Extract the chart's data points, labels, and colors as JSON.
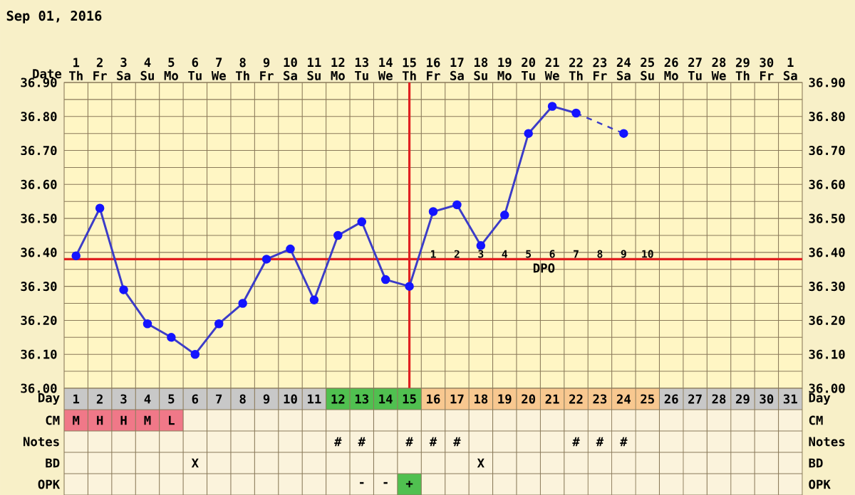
{
  "chart_data": [
    {
      "type": "line",
      "title": "Sep 01, 2016",
      "xlabel": "Date",
      "categories": [
        "1 Th",
        "2 Fr",
        "3 Sa",
        "4 Su",
        "5 Mo",
        "6 Tu",
        "7 We",
        "8 Th",
        "9 Fr",
        "10 Sa",
        "11 Su",
        "12 Mo",
        "13 Tu",
        "14 We",
        "15 Th",
        "16 Fr",
        "17 Sa",
        "18 Su",
        "19 Mo",
        "20 Tu",
        "21 We",
        "22 Th",
        "23 Fr",
        "24 Sa",
        "25 Su",
        "26 Mo",
        "27 Tu",
        "28 We",
        "29 Th",
        "30 Fr",
        "1 Sa"
      ],
      "series": [
        {
          "color": "#3c3cc8",
          "values": [
            36.39,
            36.53,
            36.29,
            36.19,
            36.15,
            36.1,
            36.19,
            36.25,
            36.38,
            36.41,
            36.26,
            36.45,
            36.49,
            36.32,
            36.3,
            36.52,
            36.54,
            36.42,
            36.51,
            36.75,
            36.83,
            36.81,
            null,
            36.75,
            null,
            null,
            null,
            null,
            null,
            null,
            null
          ]
        }
      ],
      "ylim": [
        36.0,
        36.9
      ],
      "yticks": [
        {
          "value": 36.0,
          "label": "36.00"
        },
        {
          "value": 36.1,
          "label": "36.10"
        },
        {
          "value": 36.2,
          "label": "36.20"
        },
        {
          "value": 36.3,
          "label": "36.30"
        },
        {
          "value": 36.4,
          "label": "36.40"
        },
        {
          "value": 36.5,
          "label": "36.50"
        },
        {
          "value": 36.6,
          "label": "36.60"
        },
        {
          "value": 36.7,
          "label": "36.70"
        },
        {
          "value": 36.8,
          "label": "36.80"
        },
        {
          "value": 36.9,
          "label": "36.90"
        }
      ],
      "y2lim": [
        36.0,
        36.9
      ],
      "y2ticks": [
        {
          "value": 36.0,
          "label": "36.00"
        },
        {
          "value": 36.1,
          "label": "36.10"
        },
        {
          "value": 36.2,
          "label": "36.20"
        },
        {
          "value": 36.3,
          "label": "36.30"
        },
        {
          "value": 36.4,
          "label": "36.40"
        },
        {
          "value": 36.5,
          "label": "36.50"
        },
        {
          "value": 36.6,
          "label": "36.60"
        },
        {
          "value": 36.7,
          "label": "36.70"
        },
        {
          "value": 36.8,
          "label": "36.80"
        },
        {
          "value": 36.9,
          "label": "36.90"
        }
      ],
      "ref_lines": [
        {
          "axis": "y",
          "value": 36.38,
          "label": "DPO",
          "color": "#e02020"
        },
        {
          "axis": "x",
          "value": "15 Th",
          "color": "#e02020"
        }
      ],
      "annotations": [
        "1",
        "2",
        "3",
        "4",
        "5",
        "6",
        "7",
        "8",
        "9",
        "10"
      ],
      "grid": true,
      "marker": "circle"
    },
    {
      "type": "heatmap",
      "cells": [
        [
          null,
          null,
          null,
          null,
          null,
          null,
          null,
          null,
          null,
          null,
          null,
          null,
          null,
          null,
          null,
          null,
          null,
          null,
          null,
          null,
          null,
          null,
          null,
          null,
          null,
          null,
          null,
          null,
          null,
          null,
          null
        ],
        [
          null,
          null,
          null,
          null,
          null,
          null,
          null,
          null,
          null,
          null,
          null,
          null,
          null,
          null,
          null,
          null,
          null,
          null,
          null,
          null,
          null,
          null,
          null,
          null,
          null,
          null,
          null,
          null,
          null,
          null,
          null
        ],
        [
          null,
          null,
          null,
          null,
          null,
          null,
          null,
          null,
          null,
          null,
          null,
          null,
          null,
          null,
          null,
          null,
          null,
          null,
          null,
          null,
          null,
          null,
          null,
          null,
          null,
          null,
          null,
          null,
          null,
          null,
          null
        ],
        [
          null,
          null,
          null,
          null,
          null,
          null,
          null,
          null,
          null,
          null,
          null,
          null,
          null,
          null,
          null,
          null,
          null,
          null,
          null,
          null,
          null,
          null,
          null,
          null,
          null,
          null,
          null,
          null,
          null,
          null,
          null
        ],
        [
          null,
          null,
          null,
          null,
          null,
          null,
          null,
          null,
          null,
          null,
          null,
          null,
          null,
          null,
          null,
          null,
          null,
          null,
          null,
          null,
          null,
          null,
          null,
          null,
          null,
          null,
          null,
          null,
          null,
          null,
          null
        ]
      ],
      "categories": [
        "1",
        "2",
        "3",
        "4",
        "5",
        "6",
        "7",
        "8",
        "9",
        "10",
        "11",
        "12",
        "13",
        "14",
        "15",
        "16",
        "17",
        "18",
        "19",
        "20",
        "21",
        "22",
        "23",
        "24",
        "25",
        "26",
        "27",
        "28",
        "29",
        "30",
        "31"
      ],
      "y_categories": [
        "Day",
        "CM",
        "Notes",
        "BD",
        "OPK"
      ],
      "y2_categories": [
        "Day",
        "CM",
        "Notes",
        "BD",
        "OPK"
      ],
      "cell_labels": [
        [
          null,
          null,
          null,
          null,
          null,
          null,
          null,
          null,
          null,
          null,
          null,
          null,
          null,
          null,
          null,
          null,
          null,
          null,
          null,
          null,
          null,
          null,
          null,
          null,
          null,
          null,
          null,
          null,
          null,
          null,
          null
        ],
        [
          "M",
          "H",
          "H",
          "M",
          "L",
          null,
          null,
          null,
          null,
          null,
          null,
          null,
          null,
          null,
          null,
          null,
          null,
          null,
          null,
          null,
          null,
          null,
          null,
          null,
          null,
          null,
          null,
          null,
          null,
          null,
          null
        ],
        [
          null,
          null,
          null,
          null,
          null,
          null,
          null,
          null,
          null,
          null,
          null,
          "#",
          "#",
          null,
          "#",
          "#",
          "#",
          null,
          null,
          null,
          null,
          "#",
          "#",
          "#",
          null,
          null,
          null,
          null,
          null,
          null,
          null
        ],
        [
          null,
          null,
          null,
          null,
          null,
          "X",
          null,
          null,
          null,
          null,
          null,
          null,
          null,
          null,
          null,
          null,
          null,
          "X",
          null,
          null,
          null,
          null,
          null,
          null,
          null,
          null,
          null,
          null,
          null,
          null,
          null
        ],
        [
          null,
          null,
          null,
          null,
          null,
          null,
          null,
          null,
          null,
          null,
          null,
          null,
          "-",
          "-",
          "+",
          null,
          null,
          null,
          null,
          null,
          null,
          null,
          null,
          null,
          null,
          null,
          null,
          null,
          null,
          null,
          null
        ]
      ],
      "colors": [
        [
          "#c8c8c8",
          "#c8c8c8",
          "#c8c8c8",
          "#c8c8c8",
          "#c8c8c8",
          "#c8c8c8",
          "#c8c8c8",
          "#c8c8c8",
          "#c8c8c8",
          "#c8c8c8",
          "#c8c8c8",
          "#50c050",
          "#50c050",
          "#50c050",
          "#50c050",
          "#f8c890",
          "#f8c890",
          "#f8c890",
          "#f8c890",
          "#f8c890",
          "#f8c890",
          "#f8c890",
          "#f8c890",
          "#f8c890",
          "#f8c890",
          "#c8c8c8",
          "#c8c8c8",
          "#c8c8c8",
          "#c8c8c8",
          "#c8c8c8",
          "#c8c8c8"
        ],
        [
          "#f07888",
          "#f07888",
          "#f07888",
          "#f07888",
          "#f07888",
          null,
          null,
          null,
          null,
          null,
          null,
          null,
          null,
          null,
          null,
          null,
          null,
          null,
          null,
          null,
          null,
          null,
          null,
          null,
          null,
          null,
          null,
          null,
          null,
          null,
          null
        ],
        [
          null,
          null,
          null,
          null,
          null,
          null,
          null,
          null,
          null,
          null,
          null,
          null,
          null,
          null,
          null,
          null,
          null,
          null,
          null,
          null,
          null,
          null,
          null,
          null,
          null,
          null,
          null,
          null,
          null,
          null,
          null
        ],
        [
          null,
          null,
          null,
          null,
          null,
          null,
          null,
          null,
          null,
          null,
          null,
          null,
          null,
          null,
          null,
          null,
          null,
          null,
          null,
          null,
          null,
          null,
          null,
          null,
          null,
          null,
          null,
          null,
          null,
          null,
          null
        ],
        [
          null,
          null,
          null,
          null,
          null,
          null,
          null,
          null,
          null,
          null,
          null,
          null,
          null,
          null,
          "#50c050",
          null,
          null,
          null,
          null,
          null,
          null,
          null,
          null,
          null,
          null,
          null,
          null,
          null,
          null,
          null,
          null
        ]
      ]
    }
  ]
}
